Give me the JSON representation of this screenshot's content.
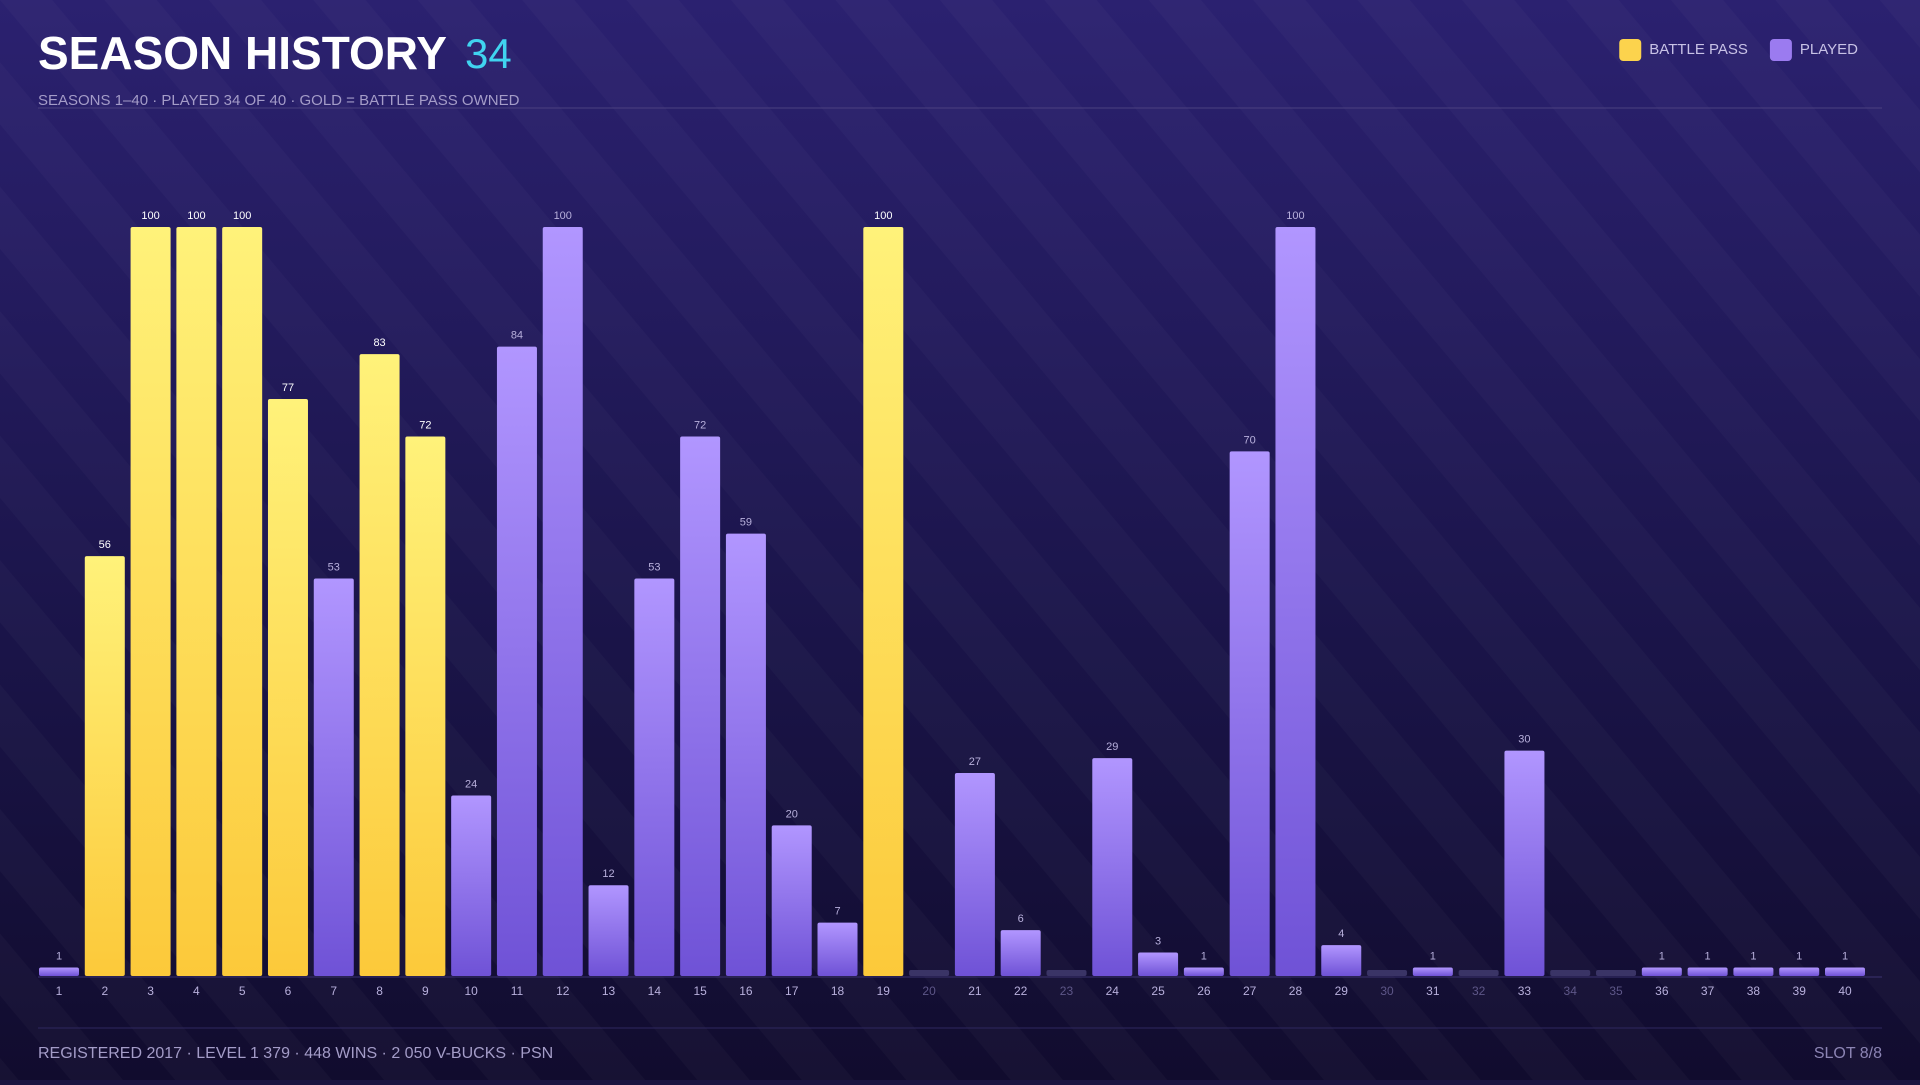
{
  "chart_data": {
    "type": "bar",
    "title": "SEASON HISTORY",
    "title_count": 34,
    "subtitle": "SEASONS 1–40 · PLAYED 34 OF 40 · GOLD = BATTLE PASS OWNED",
    "categories": [
      "1",
      "2",
      "3",
      "4",
      "5",
      "6",
      "7",
      "8",
      "9",
      "10",
      "11",
      "12",
      "13",
      "14",
      "15",
      "16",
      "17",
      "18",
      "19",
      "20",
      "21",
      "22",
      "23",
      "24",
      "25",
      "26",
      "27",
      "28",
      "29",
      "30",
      "31",
      "32",
      "33",
      "34",
      "35",
      "36",
      "37",
      "38",
      "39",
      "40"
    ],
    "values": [
      1,
      56,
      100,
      100,
      100,
      77,
      53,
      83,
      72,
      24,
      84,
      100,
      12,
      53,
      72,
      59,
      20,
      7,
      100,
      null,
      27,
      6,
      null,
      29,
      3,
      1,
      70,
      100,
      4,
      null,
      1,
      null,
      30,
      null,
      null,
      1,
      1,
      1,
      1,
      1
    ],
    "battle_pass": [
      false,
      true,
      true,
      true,
      true,
      true,
      false,
      true,
      true,
      false,
      false,
      false,
      false,
      false,
      false,
      false,
      false,
      false,
      true,
      false,
      false,
      false,
      false,
      false,
      false,
      false,
      false,
      false,
      false,
      false,
      false,
      false,
      false,
      false,
      false,
      false,
      false,
      false,
      false,
      false
    ],
    "legend": [
      {
        "name": "BATTLE PASS",
        "color": "#fcd34d"
      },
      {
        "name": "PLAYED",
        "color": "#9b7bf0"
      }
    ],
    "ylim": [
      0,
      100
    ],
    "footer": "REGISTERED 2017 · LEVEL 1 379 · 448 WINS · 2 050 V-BUCKS · PSN",
    "footer_right": "SLOT 8/8"
  }
}
